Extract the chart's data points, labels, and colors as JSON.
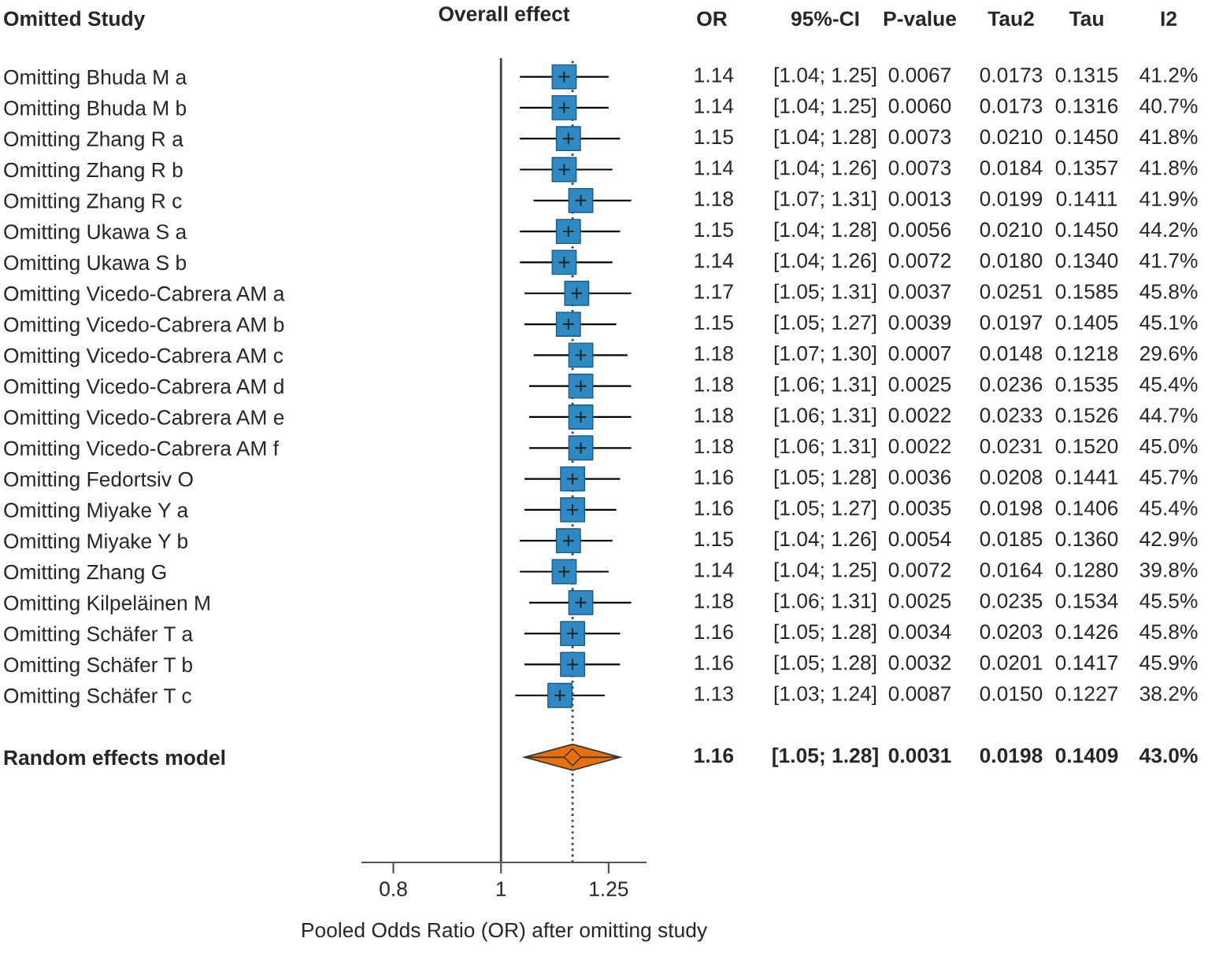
{
  "chart_data": {
    "type": "scatter",
    "orientation": "horizontal",
    "title": "Overall effect",
    "ylabel": "Omitted Study",
    "xlabel": "Pooled Odds Ratio (OR) after omitting study",
    "categories": [
      "Omitting Bhuda M a",
      "Omitting Bhuda M b",
      "Omitting Zhang R a",
      "Omitting Zhang R b",
      "Omitting Zhang R c",
      "Omitting Ukawa S a",
      "Omitting Ukawa S b",
      "Omitting Vicedo-Cabrera AM a",
      "Omitting Vicedo-Cabrera AM b",
      "Omitting Vicedo-Cabrera AM c",
      "Omitting Vicedo-Cabrera AM d",
      "Omitting Vicedo-Cabrera AM e",
      "Omitting Vicedo-Cabrera AM f",
      "Omitting Fedortsiv O",
      "Omitting Miyake Y a",
      "Omitting Miyake Y b",
      "Omitting Zhang G",
      "Omitting Kilpeläinen M",
      "Omitting Schäfer T a",
      "Omitting Schäfer T b",
      "Omitting Schäfer T c",
      null,
      "Random effects model"
    ],
    "series": [
      {
        "color": "#2f8ac4",
        "marker": "square",
        "values": [
          1.14,
          1.14,
          1.15,
          1.14,
          1.18,
          1.15,
          1.14,
          1.17,
          1.15,
          1.18,
          1.18,
          1.18,
          1.18,
          1.16,
          1.16,
          1.15,
          1.14,
          1.18,
          1.16,
          1.16,
          1.13,
          null,
          null
        ],
        "value_labels": [
          "1.14",
          "1.14",
          "1.15",
          "1.14",
          "1.18",
          "1.15",
          "1.14",
          "1.17",
          "1.15",
          "1.18",
          "1.18",
          "1.18",
          "1.18",
          "1.16",
          "1.16",
          "1.15",
          "1.14",
          "1.18",
          "1.16",
          "1.16",
          "1.13",
          null,
          null
        ],
        "errors": [
          [
            1.04,
            1.25
          ],
          [
            1.04,
            1.25
          ],
          [
            1.04,
            1.28
          ],
          [
            1.04,
            1.26
          ],
          [
            1.07,
            1.31
          ],
          [
            1.04,
            1.28
          ],
          [
            1.04,
            1.26
          ],
          [
            1.05,
            1.31
          ],
          [
            1.05,
            1.27
          ],
          [
            1.07,
            1.3
          ],
          [
            1.06,
            1.31
          ],
          [
            1.06,
            1.31
          ],
          [
            1.06,
            1.31
          ],
          [
            1.05,
            1.28
          ],
          [
            1.05,
            1.27
          ],
          [
            1.04,
            1.26
          ],
          [
            1.04,
            1.25
          ],
          [
            1.06,
            1.31
          ],
          [
            1.05,
            1.28
          ],
          [
            1.05,
            1.28
          ],
          [
            1.03,
            1.24
          ],
          null,
          null
        ]
      },
      {
        "color": "#e8700c",
        "marker": "diamond",
        "values": [
          null,
          null,
          null,
          null,
          null,
          null,
          null,
          null,
          null,
          null,
          null,
          null,
          null,
          null,
          null,
          null,
          null,
          null,
          null,
          null,
          null,
          null,
          1.16
        ],
        "errors": [
          null,
          null,
          null,
          null,
          null,
          null,
          null,
          null,
          null,
          null,
          null,
          null,
          null,
          null,
          null,
          null,
          null,
          null,
          null,
          null,
          null,
          null,
          [
            1.05,
            1.28
          ]
        ]
      }
    ],
    "log": "x",
    "xlim": [
      0.75,
      1.35
    ],
    "xticks": [
      0.8,
      1,
      1.25
    ],
    "tick_labels": "x",
    "grid": false,
    "legend": false,
    "ref_lines": [
      {
        "axis": "x",
        "value": 1,
        "line_style": "solid",
        "color": "#404040"
      },
      {
        "axis": "x",
        "value": 1.16,
        "line_style": "dotted",
        "color": "#404040"
      }
    ],
    "annotations": [
      "OR",
      "95%-CI",
      "P-value",
      "Tau2",
      "Tau",
      "I2",
      "[1.04; 1.25]",
      "0.0067",
      "0.0173",
      "0.1315",
      "41.2%",
      "[1.04; 1.25]",
      "0.0060",
      "0.0173",
      "0.1316",
      "40.7%",
      "[1.04; 1.28]",
      "0.0073",
      "0.0210",
      "0.1450",
      "41.8%",
      "[1.04; 1.26]",
      "0.0073",
      "0.0184",
      "0.1357",
      "41.8%",
      "[1.07; 1.31]",
      "0.0013",
      "0.0199",
      "0.1411",
      "41.9%",
      "[1.04; 1.28]",
      "0.0056",
      "0.0210",
      "0.1450",
      "44.2%",
      "[1.04; 1.26]",
      "0.0072",
      "0.0180",
      "0.1340",
      "41.7%",
      "[1.05; 1.31]",
      "0.0037",
      "0.0251",
      "0.1585",
      "45.8%",
      "[1.05; 1.27]",
      "0.0039",
      "0.0197",
      "0.1405",
      "45.1%",
      "[1.07; 1.30]",
      "0.0007",
      "0.0148",
      "0.1218",
      "29.6%",
      "[1.06; 1.31]",
      "0.0025",
      "0.0236",
      "0.1535",
      "45.4%",
      "[1.06; 1.31]",
      "0.0022",
      "0.0233",
      "0.1526",
      "44.7%",
      "[1.06; 1.31]",
      "0.0022",
      "0.0231",
      "0.1520",
      "45.0%",
      "[1.05; 1.28]",
      "0.0036",
      "0.0208",
      "0.1441",
      "45.7%",
      "[1.05; 1.27]",
      "0.0035",
      "0.0198",
      "0.1406",
      "45.4%",
      "[1.04; 1.26]",
      "0.0054",
      "0.0185",
      "0.1360",
      "42.9%",
      "[1.04; 1.25]",
      "0.0072",
      "0.0164",
      "0.1280",
      "39.8%",
      "[1.06; 1.31]",
      "0.0025",
      "0.0235",
      "0.1534",
      "45.5%",
      "[1.05; 1.28]",
      "0.0034",
      "0.0203",
      "0.1426",
      "45.8%",
      "[1.05; 1.28]",
      "0.0032",
      "0.0201",
      "0.1417",
      "45.9%",
      "[1.03; 1.24]",
      "0.0087",
      "0.0150",
      "0.1227",
      "38.2%",
      "[1.05; 1.28]",
      "0.0031",
      "0.0198",
      "0.1409",
      "43.0%",
      "1.16"
    ]
  }
}
